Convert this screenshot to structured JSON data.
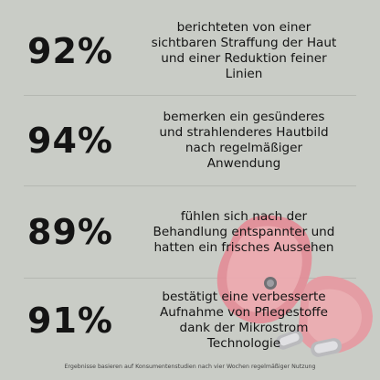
{
  "stats": [
    {
      "value": "92%",
      "text": "berichteten von einer\nsichtbaren Straffung der Haut\nund einer Reduktion feiner\nLinien"
    },
    {
      "value": "94%",
      "text": "bemerken ein gesünderes\nund strahlenderes Hautbild\nnach regelmäßiger\nAnwendung"
    },
    {
      "value": "89%",
      "text": "fühlen sich nach der\nBehandlung entspannter und\nhatten ein frisches Aussehen"
    },
    {
      "value": "91%",
      "text": "bestätigt eine verbesserte\nAufnahme von Pflegestoffe\ndank der Mikrostrom\nTechnologie"
    }
  ],
  "footnote": "Ergebnisse basieren auf Konsumentenstudien nach vier Wochen regelmäßiger Nutzung",
  "colors": {
    "background": "#c9ccc6",
    "text": "#141414",
    "device_pink": "#e79aa2",
    "device_chrome": "#b9b9bd"
  },
  "illustration": "microcurrent-device-icon"
}
